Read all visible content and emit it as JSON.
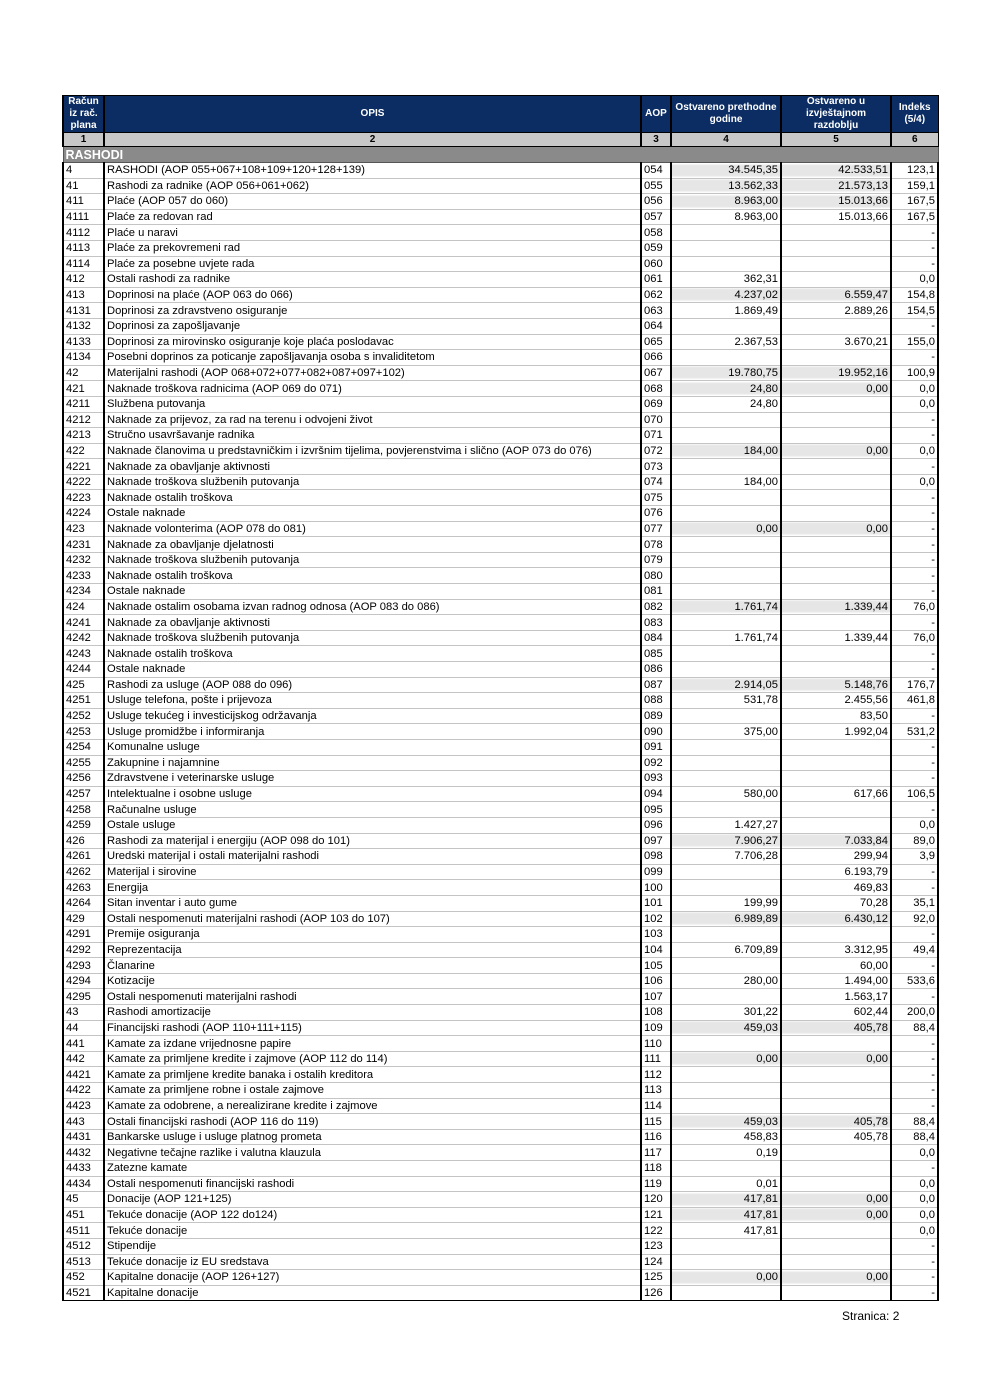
{
  "header": {
    "col1": "Račun iz rač. plana",
    "col2": "OPIS",
    "col3": "AOP",
    "col4": "Ostvareno prethodne godine",
    "col5": "Ostvareno u izvještajnom razdoblju",
    "col6": "Indeks (5/4)"
  },
  "col_numbers": [
    "1",
    "2",
    "3",
    "4",
    "5",
    "6"
  ],
  "section": "RASHODI",
  "colors": {
    "header_bg": "#0b2d63",
    "section_bg": "#8a8a8a",
    "number_row_bg": "#c8c8c8"
  },
  "rows": [
    [
      "4",
      "RASHODI (AOP 055+067+108+109+120+128+139)",
      "054",
      "34.545,35",
      "42.533,51",
      "123,1",
      true
    ],
    [
      "41",
      "Rashodi za radnike (AOP 056+061+062)",
      "055",
      "13.562,33",
      "21.573,13",
      "159,1",
      true
    ],
    [
      "411",
      "Plaće (AOP 057 do 060)",
      "056",
      "8.963,00",
      "15.013,66",
      "167,5",
      true
    ],
    [
      "4111",
      "Plaće za redovan rad",
      "057",
      "8.963,00",
      "15.013,66",
      "167,5",
      false
    ],
    [
      "4112",
      "Plaće u naravi",
      "058",
      "",
      "",
      "-",
      false
    ],
    [
      "4113",
      "Plaće za prekovremeni rad",
      "059",
      "",
      "",
      "-",
      false
    ],
    [
      "4114",
      "Plaće za posebne uvjete rada",
      "060",
      "",
      "",
      "-",
      false
    ],
    [
      "412",
      "Ostali rashodi za radnike",
      "061",
      "362,31",
      "",
      "0,0",
      false
    ],
    [
      "413",
      "Doprinosi na plaće (AOP 063 do 066)",
      "062",
      "4.237,02",
      "6.559,47",
      "154,8",
      true
    ],
    [
      "4131",
      "Doprinosi za zdravstveno osiguranje",
      "063",
      "1.869,49",
      "2.889,26",
      "154,5",
      false
    ],
    [
      "4132",
      "Doprinosi za zapošljavanje",
      "064",
      "",
      "",
      "-",
      false
    ],
    [
      "4133",
      "Doprinosi za mirovinsko osiguranje koje plaća poslodavac",
      "065",
      "2.367,53",
      "3.670,21",
      "155,0",
      false
    ],
    [
      "4134",
      "Posebni doprinos za poticanje zapošljavanja osoba s invaliditetom",
      "066",
      "",
      "",
      "-",
      false
    ],
    [
      "42",
      "Materijalni rashodi (AOP 068+072+077+082+087+097+102)",
      "067",
      "19.780,75",
      "19.952,16",
      "100,9",
      true
    ],
    [
      "421",
      "Naknade troškova radnicima (AOP 069 do 071)",
      "068",
      "24,80",
      "0,00",
      "0,0",
      true
    ],
    [
      "4211",
      "Službena putovanja",
      "069",
      "24,80",
      "",
      "0,0",
      false
    ],
    [
      "4212",
      "Naknade za prijevoz, za rad na terenu i odvojeni život",
      "070",
      "",
      "",
      "-",
      false
    ],
    [
      "4213",
      "Stručno usavršavanje radnika",
      "071",
      "",
      "",
      "-",
      false
    ],
    [
      "422",
      "Naknade članovima u predstavničkim i izvršnim tijelima, povjerenstvima i slično (AOP 073 do 076)",
      "072",
      "184,00",
      "0,00",
      "0,0",
      true
    ],
    [
      "4221",
      "Naknade za obavljanje aktivnosti",
      "073",
      "",
      "",
      "-",
      false
    ],
    [
      "4222",
      "Naknade troškova službenih putovanja",
      "074",
      "184,00",
      "",
      "0,0",
      false
    ],
    [
      "4223",
      "Naknade ostalih troškova",
      "075",
      "",
      "",
      "-",
      false
    ],
    [
      "4224",
      "Ostale naknade",
      "076",
      "",
      "",
      "-",
      false
    ],
    [
      "423",
      "Naknade volonterima (AOP 078 do 081)",
      "077",
      "0,00",
      "0,00",
      "-",
      true
    ],
    [
      "4231",
      "Naknade za obavljanje djelatnosti",
      "078",
      "",
      "",
      "-",
      false
    ],
    [
      "4232",
      "Naknade troškova službenih putovanja",
      "079",
      "",
      "",
      "-",
      false
    ],
    [
      "4233",
      "Naknade ostalih troškova",
      "080",
      "",
      "",
      "-",
      false
    ],
    [
      "4234",
      "Ostale naknade",
      "081",
      "",
      "",
      "-",
      false
    ],
    [
      "424",
      "Naknade ostalim osobama izvan radnog odnosa (AOP 083 do 086)",
      "082",
      "1.761,74",
      "1.339,44",
      "76,0",
      true
    ],
    [
      "4241",
      "Naknade za obavljanje aktivnosti",
      "083",
      "",
      "",
      "-",
      false
    ],
    [
      "4242",
      "Naknade troškova službenih putovanja",
      "084",
      "1.761,74",
      "1.339,44",
      "76,0",
      false
    ],
    [
      "4243",
      "Naknade ostalih troškova",
      "085",
      "",
      "",
      "-",
      false
    ],
    [
      "4244",
      "Ostale naknade",
      "086",
      "",
      "",
      "-",
      false
    ],
    [
      "425",
      "Rashodi za usluge (AOP 088 do 096)",
      "087",
      "2.914,05",
      "5.148,76",
      "176,7",
      true
    ],
    [
      "4251",
      "Usluge telefona, pošte i prijevoza",
      "088",
      "531,78",
      "2.455,56",
      "461,8",
      false
    ],
    [
      "4252",
      "Usluge tekućeg i investicijskog održavanja",
      "089",
      "",
      "83,50",
      "-",
      false
    ],
    [
      "4253",
      "Usluge promidžbe i informiranja",
      "090",
      "375,00",
      "1.992,04",
      "531,2",
      false
    ],
    [
      "4254",
      "Komunalne usluge",
      "091",
      "",
      "",
      "-",
      false
    ],
    [
      "4255",
      "Zakupnine i najamnine",
      "092",
      "",
      "",
      "-",
      false
    ],
    [
      "4256",
      "Zdravstvene i veterinarske usluge",
      "093",
      "",
      "",
      "-",
      false
    ],
    [
      "4257",
      "Intelektualne i osobne usluge",
      "094",
      "580,00",
      "617,66",
      "106,5",
      false
    ],
    [
      "4258",
      "Računalne usluge",
      "095",
      "",
      "",
      "-",
      false
    ],
    [
      "4259",
      "Ostale usluge",
      "096",
      "1.427,27",
      "",
      "0,0",
      false
    ],
    [
      "426",
      "Rashodi za materijal i energiju (AOP 098 do 101)",
      "097",
      "7.906,27",
      "7.033,84",
      "89,0",
      true
    ],
    [
      "4261",
      "Uredski materijal i ostali materijalni rashodi",
      "098",
      "7.706,28",
      "299,94",
      "3,9",
      false
    ],
    [
      "4262",
      "Materijal i sirovine",
      "099",
      "",
      "6.193,79",
      "-",
      false
    ],
    [
      "4263",
      "Energija",
      "100",
      "",
      "469,83",
      "-",
      false
    ],
    [
      "4264",
      "Sitan inventar i auto gume",
      "101",
      "199,99",
      "70,28",
      "35,1",
      false
    ],
    [
      "429",
      "Ostali nespomenuti materijalni rashodi (AOP 103 do 107)",
      "102",
      "6.989,89",
      "6.430,12",
      "92,0",
      true
    ],
    [
      "4291",
      "Premije osiguranja",
      "103",
      "",
      "",
      "-",
      false
    ],
    [
      "4292",
      "Reprezentacija",
      "104",
      "6.709,89",
      "3.312,95",
      "49,4",
      false
    ],
    [
      "4293",
      "Članarine",
      "105",
      "",
      "60,00",
      "-",
      false
    ],
    [
      "4294",
      "Kotizacije",
      "106",
      "280,00",
      "1.494,00",
      "533,6",
      false
    ],
    [
      "4295",
      "Ostali nespomenuti materijalni rashodi",
      "107",
      "",
      "1.563,17",
      "-",
      false
    ],
    [
      "43",
      "Rashodi amortizacije",
      "108",
      "301,22",
      "602,44",
      "200,0",
      false
    ],
    [
      "44",
      "Financijski rashodi (AOP 110+111+115)",
      "109",
      "459,03",
      "405,78",
      "88,4",
      true
    ],
    [
      "441",
      "Kamate za izdane vrijednosne papire",
      "110",
      "",
      "",
      "-",
      false
    ],
    [
      "442",
      "Kamate za primljene kredite i zajmove (AOP 112 do 114)",
      "111",
      "0,00",
      "0,00",
      "-",
      true
    ],
    [
      "4421",
      "Kamate za primljene kredite banaka i ostalih kreditora",
      "112",
      "",
      "",
      "-",
      false
    ],
    [
      "4422",
      "Kamate za primljene robne i ostale zajmove",
      "113",
      "",
      "",
      "-",
      false
    ],
    [
      "4423",
      "Kamate za odobrene, a nerealizirane kredite i zajmove",
      "114",
      "",
      "",
      "-",
      false
    ],
    [
      "443",
      "Ostali financijski rashodi (AOP 116 do 119)",
      "115",
      "459,03",
      "405,78",
      "88,4",
      true
    ],
    [
      "4431",
      "Bankarske usluge i usluge platnog prometa",
      "116",
      "458,83",
      "405,78",
      "88,4",
      false
    ],
    [
      "4432",
      "Negativne tečajne razlike i valutna klauzula",
      "117",
      "0,19",
      "",
      "0,0",
      false
    ],
    [
      "4433",
      "Zatezne kamate",
      "118",
      "",
      "",
      "-",
      false
    ],
    [
      "4434",
      "Ostali nespomenuti financijski rashodi",
      "119",
      "0,01",
      "",
      "0,0",
      false
    ],
    [
      "45",
      "Donacije (AOP 121+125)",
      "120",
      "417,81",
      "0,00",
      "0,0",
      true
    ],
    [
      "451",
      "Tekuće donacije (AOP 122 do124)",
      "121",
      "417,81",
      "0,00",
      "0,0",
      true
    ],
    [
      "4511",
      "Tekuće donacije",
      "122",
      "417,81",
      "",
      "0,0",
      false
    ],
    [
      "4512",
      "Stipendije",
      "123",
      "",
      "",
      "-",
      false
    ],
    [
      "4513",
      "Tekuće donacije iz EU sredstava",
      "124",
      "",
      "",
      "-",
      false
    ],
    [
      "452",
      "Kapitalne donacije (AOP 126+127)",
      "125",
      "0,00",
      "0,00",
      "-",
      true
    ],
    [
      "4521",
      "Kapitalne donacije",
      "126",
      "",
      "",
      "-",
      false
    ]
  ],
  "footer": {
    "page": "Stranica: 2"
  }
}
